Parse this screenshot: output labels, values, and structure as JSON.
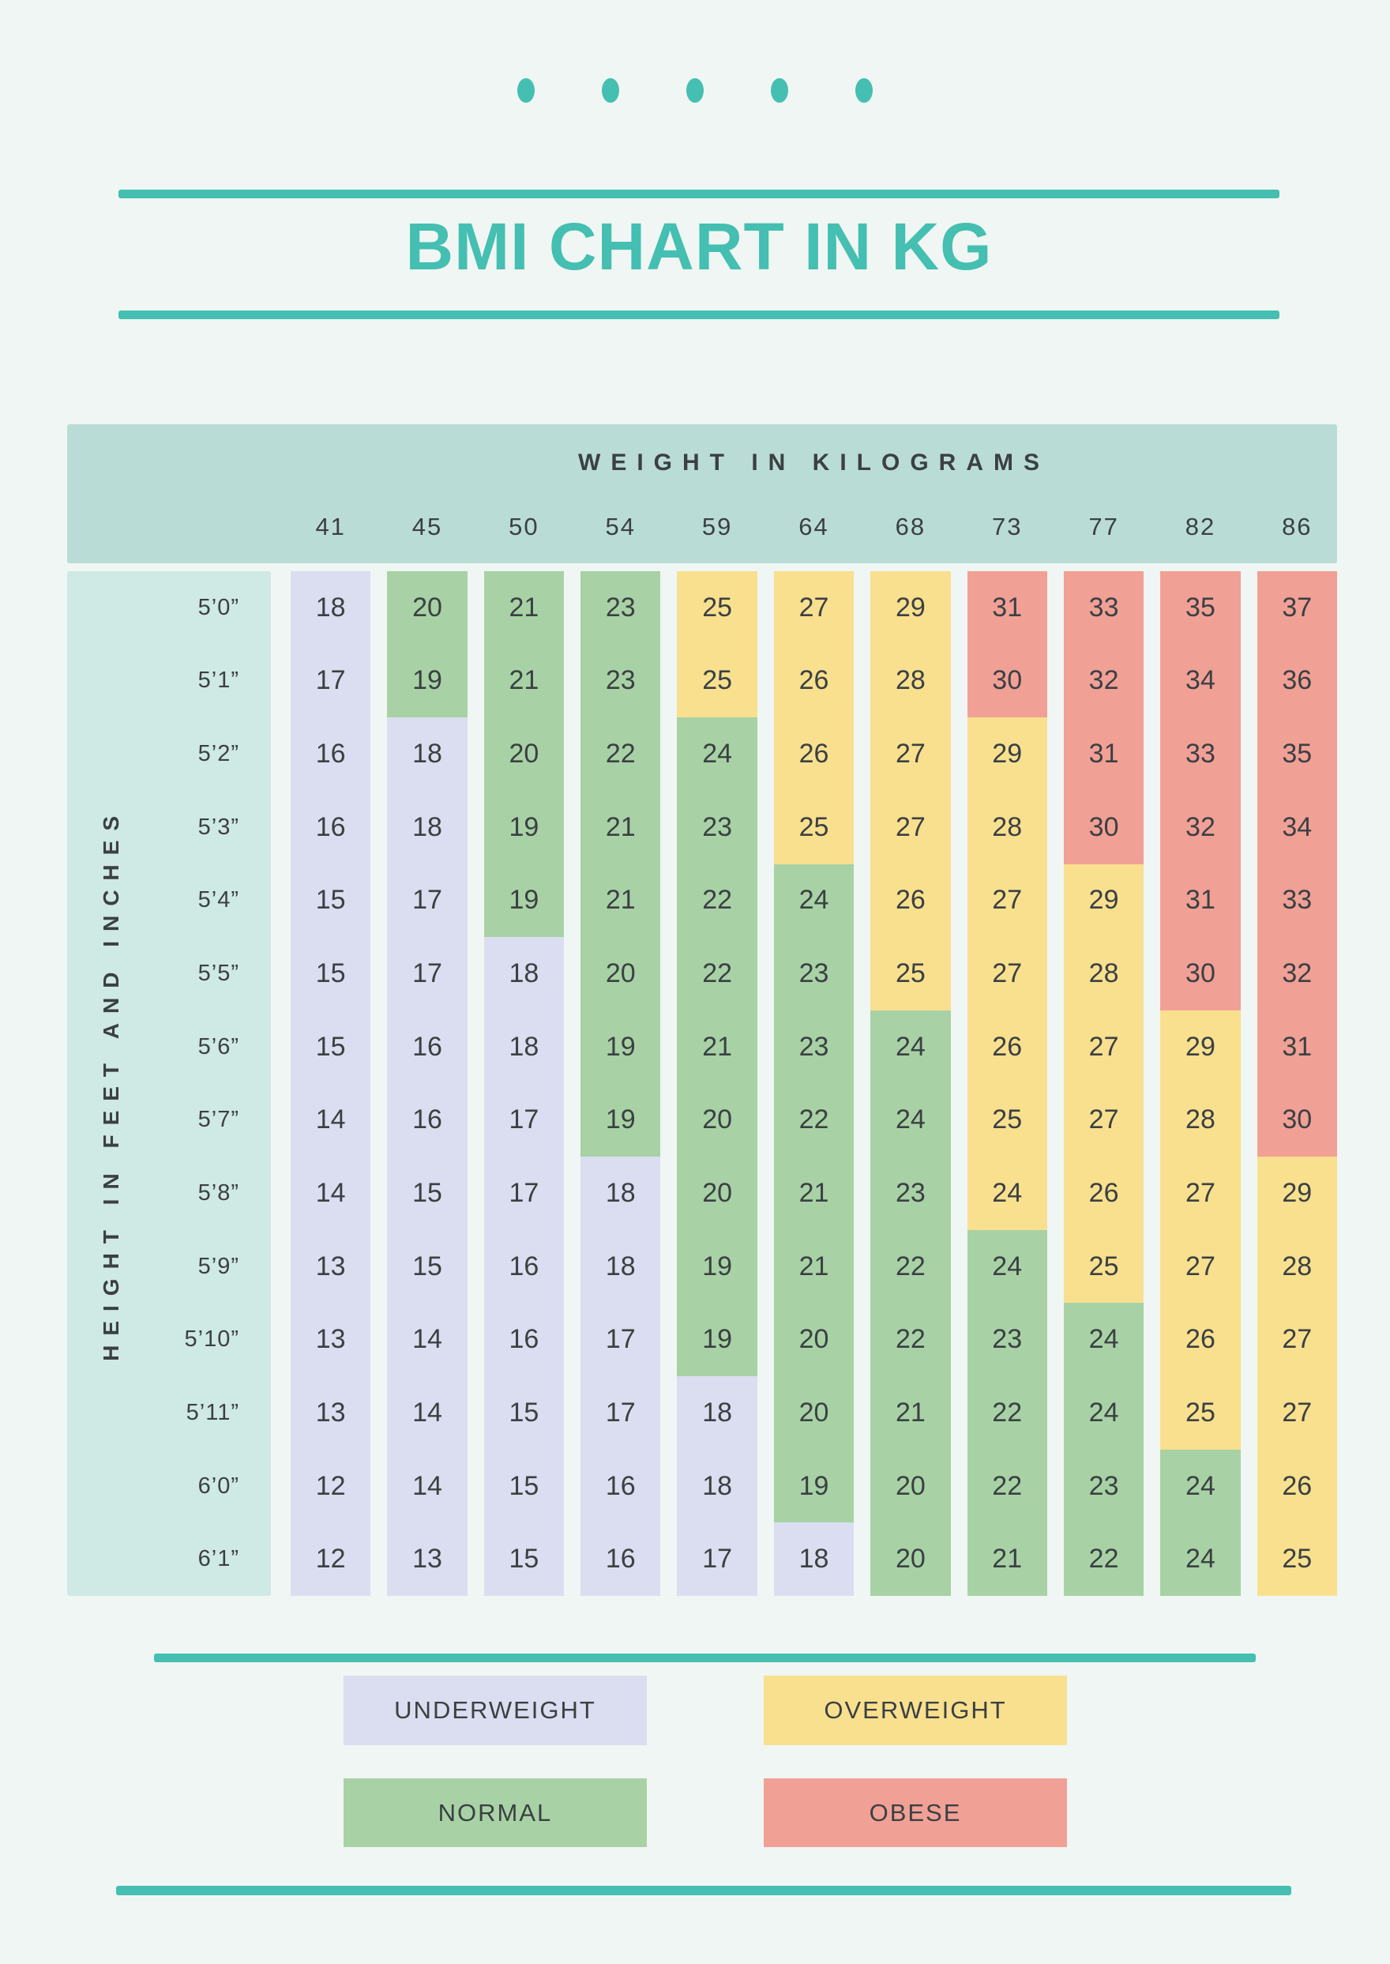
{
  "title": "BMI CHART IN KG",
  "decor": {
    "dot_count": 5
  },
  "table": {
    "weight_axis_label": "WEIGHT IN KILOGRAMS",
    "height_axis_label": "HEIGHT IN FEET AND INCHES",
    "weights": [
      "41",
      "45",
      "50",
      "54",
      "59",
      "64",
      "68",
      "73",
      "77",
      "82",
      "86"
    ],
    "rows": [
      {
        "height": "5’0”",
        "cells": [
          [
            "18",
            "underweight"
          ],
          [
            "20",
            "normal"
          ],
          [
            "21",
            "normal"
          ],
          [
            "23",
            "normal"
          ],
          [
            "25",
            "overweight"
          ],
          [
            "27",
            "overweight"
          ],
          [
            "29",
            "overweight"
          ],
          [
            "31",
            "obese"
          ],
          [
            "33",
            "obese"
          ],
          [
            "35",
            "obese"
          ],
          [
            "37",
            "obese"
          ]
        ]
      },
      {
        "height": "5’1”",
        "cells": [
          [
            "17",
            "underweight"
          ],
          [
            "19",
            "normal"
          ],
          [
            "21",
            "normal"
          ],
          [
            "23",
            "normal"
          ],
          [
            "25",
            "overweight"
          ],
          [
            "26",
            "overweight"
          ],
          [
            "28",
            "overweight"
          ],
          [
            "30",
            "obese"
          ],
          [
            "32",
            "obese"
          ],
          [
            "34",
            "obese"
          ],
          [
            "36",
            "obese"
          ]
        ]
      },
      {
        "height": "5’2”",
        "cells": [
          [
            "16",
            "underweight"
          ],
          [
            "18",
            "underweight"
          ],
          [
            "20",
            "normal"
          ],
          [
            "22",
            "normal"
          ],
          [
            "24",
            "normal"
          ],
          [
            "26",
            "overweight"
          ],
          [
            "27",
            "overweight"
          ],
          [
            "29",
            "overweight"
          ],
          [
            "31",
            "obese"
          ],
          [
            "33",
            "obese"
          ],
          [
            "35",
            "obese"
          ]
        ]
      },
      {
        "height": "5’3”",
        "cells": [
          [
            "16",
            "underweight"
          ],
          [
            "18",
            "underweight"
          ],
          [
            "19",
            "normal"
          ],
          [
            "21",
            "normal"
          ],
          [
            "23",
            "normal"
          ],
          [
            "25",
            "overweight"
          ],
          [
            "27",
            "overweight"
          ],
          [
            "28",
            "overweight"
          ],
          [
            "30",
            "obese"
          ],
          [
            "32",
            "obese"
          ],
          [
            "34",
            "obese"
          ]
        ]
      },
      {
        "height": "5’4”",
        "cells": [
          [
            "15",
            "underweight"
          ],
          [
            "17",
            "underweight"
          ],
          [
            "19",
            "normal"
          ],
          [
            "21",
            "normal"
          ],
          [
            "22",
            "normal"
          ],
          [
            "24",
            "normal"
          ],
          [
            "26",
            "overweight"
          ],
          [
            "27",
            "overweight"
          ],
          [
            "29",
            "overweight"
          ],
          [
            "31",
            "obese"
          ],
          [
            "33",
            "obese"
          ]
        ]
      },
      {
        "height": "5’5”",
        "cells": [
          [
            "15",
            "underweight"
          ],
          [
            "17",
            "underweight"
          ],
          [
            "18",
            "underweight"
          ],
          [
            "20",
            "normal"
          ],
          [
            "22",
            "normal"
          ],
          [
            "23",
            "normal"
          ],
          [
            "25",
            "overweight"
          ],
          [
            "27",
            "overweight"
          ],
          [
            "28",
            "overweight"
          ],
          [
            "30",
            "obese"
          ],
          [
            "32",
            "obese"
          ]
        ]
      },
      {
        "height": "5’6”",
        "cells": [
          [
            "15",
            "underweight"
          ],
          [
            "16",
            "underweight"
          ],
          [
            "18",
            "underweight"
          ],
          [
            "19",
            "normal"
          ],
          [
            "21",
            "normal"
          ],
          [
            "23",
            "normal"
          ],
          [
            "24",
            "normal"
          ],
          [
            "26",
            "overweight"
          ],
          [
            "27",
            "overweight"
          ],
          [
            "29",
            "overweight"
          ],
          [
            "31",
            "obese"
          ]
        ]
      },
      {
        "height": "5’7”",
        "cells": [
          [
            "14",
            "underweight"
          ],
          [
            "16",
            "underweight"
          ],
          [
            "17",
            "underweight"
          ],
          [
            "19",
            "normal"
          ],
          [
            "20",
            "normal"
          ],
          [
            "22",
            "normal"
          ],
          [
            "24",
            "normal"
          ],
          [
            "25",
            "overweight"
          ],
          [
            "27",
            "overweight"
          ],
          [
            "28",
            "overweight"
          ],
          [
            "30",
            "obese"
          ]
        ]
      },
      {
        "height": "5’8”",
        "cells": [
          [
            "14",
            "underweight"
          ],
          [
            "15",
            "underweight"
          ],
          [
            "17",
            "underweight"
          ],
          [
            "18",
            "underweight"
          ],
          [
            "20",
            "normal"
          ],
          [
            "21",
            "normal"
          ],
          [
            "23",
            "normal"
          ],
          [
            "24",
            "overweight"
          ],
          [
            "26",
            "overweight"
          ],
          [
            "27",
            "overweight"
          ],
          [
            "29",
            "overweight"
          ]
        ]
      },
      {
        "height": "5’9”",
        "cells": [
          [
            "13",
            "underweight"
          ],
          [
            "15",
            "underweight"
          ],
          [
            "16",
            "underweight"
          ],
          [
            "18",
            "underweight"
          ],
          [
            "19",
            "normal"
          ],
          [
            "21",
            "normal"
          ],
          [
            "22",
            "normal"
          ],
          [
            "24",
            "normal"
          ],
          [
            "25",
            "overweight"
          ],
          [
            "27",
            "overweight"
          ],
          [
            "28",
            "overweight"
          ]
        ]
      },
      {
        "height": "5’10”",
        "cells": [
          [
            "13",
            "underweight"
          ],
          [
            "14",
            "underweight"
          ],
          [
            "16",
            "underweight"
          ],
          [
            "17",
            "underweight"
          ],
          [
            "19",
            "normal"
          ],
          [
            "20",
            "normal"
          ],
          [
            "22",
            "normal"
          ],
          [
            "23",
            "normal"
          ],
          [
            "24",
            "normal"
          ],
          [
            "26",
            "overweight"
          ],
          [
            "27",
            "overweight"
          ]
        ]
      },
      {
        "height": "5’11”",
        "cells": [
          [
            "13",
            "underweight"
          ],
          [
            "14",
            "underweight"
          ],
          [
            "15",
            "underweight"
          ],
          [
            "17",
            "underweight"
          ],
          [
            "18",
            "underweight"
          ],
          [
            "20",
            "normal"
          ],
          [
            "21",
            "normal"
          ],
          [
            "22",
            "normal"
          ],
          [
            "24",
            "normal"
          ],
          [
            "25",
            "overweight"
          ],
          [
            "27",
            "overweight"
          ]
        ]
      },
      {
        "height": "6’0”",
        "cells": [
          [
            "12",
            "underweight"
          ],
          [
            "14",
            "underweight"
          ],
          [
            "15",
            "underweight"
          ],
          [
            "16",
            "underweight"
          ],
          [
            "18",
            "underweight"
          ],
          [
            "19",
            "normal"
          ],
          [
            "20",
            "normal"
          ],
          [
            "22",
            "normal"
          ],
          [
            "23",
            "normal"
          ],
          [
            "24",
            "normal"
          ],
          [
            "26",
            "overweight"
          ]
        ]
      },
      {
        "height": "6’1”",
        "cells": [
          [
            "12",
            "underweight"
          ],
          [
            "13",
            "underweight"
          ],
          [
            "15",
            "underweight"
          ],
          [
            "16",
            "underweight"
          ],
          [
            "17",
            "underweight"
          ],
          [
            "18",
            "underweight"
          ],
          [
            "20",
            "normal"
          ],
          [
            "21",
            "normal"
          ],
          [
            "22",
            "normal"
          ],
          [
            "24",
            "normal"
          ],
          [
            "25",
            "overweight"
          ]
        ]
      }
    ]
  },
  "legend": [
    {
      "label": "UNDERWEIGHT",
      "category": "underweight"
    },
    {
      "label": "OVERWEIGHT",
      "category": "overweight"
    },
    {
      "label": "NORMAL",
      "category": "normal"
    },
    {
      "label": "OBESE",
      "category": "obese"
    }
  ],
  "colors": {
    "accent": "#44bfb1",
    "page_bg": "#f0f6f3",
    "band": "#badcd6",
    "height_col": "#cfe9e4",
    "ink": "#3b4043",
    "underweight": "#dadef0",
    "normal": "#a8d2a5",
    "overweight": "#f8e08e",
    "obese": "#f1a096"
  },
  "chart_data": {
    "type": "table",
    "title": "BMI CHART IN KG",
    "xlabel": "WEIGHT IN KILOGRAMS",
    "ylabel": "HEIGHT IN FEET AND INCHES",
    "columns_weight_kg": [
      41,
      45,
      50,
      54,
      59,
      64,
      68,
      73,
      77,
      82,
      86
    ],
    "rows_height": [
      "5'0\"",
      "5'1\"",
      "5'2\"",
      "5'3\"",
      "5'4\"",
      "5'5\"",
      "5'6\"",
      "5'7\"",
      "5'8\"",
      "5'9\"",
      "5'10\"",
      "5'11\"",
      "6'0\"",
      "6'1\""
    ],
    "values_bmi": [
      [
        18,
        20,
        21,
        23,
        25,
        27,
        29,
        31,
        33,
        35,
        37
      ],
      [
        17,
        19,
        21,
        23,
        25,
        26,
        28,
        30,
        32,
        34,
        36
      ],
      [
        16,
        18,
        20,
        22,
        24,
        26,
        27,
        29,
        31,
        33,
        35
      ],
      [
        16,
        18,
        19,
        21,
        23,
        25,
        27,
        28,
        30,
        32,
        34
      ],
      [
        15,
        17,
        19,
        21,
        22,
        24,
        26,
        27,
        29,
        31,
        33
      ],
      [
        15,
        17,
        18,
        20,
        22,
        23,
        25,
        27,
        28,
        30,
        32
      ],
      [
        15,
        16,
        18,
        19,
        21,
        23,
        24,
        26,
        27,
        29,
        31
      ],
      [
        14,
        16,
        17,
        19,
        20,
        22,
        24,
        25,
        27,
        28,
        30
      ],
      [
        14,
        15,
        17,
        18,
        20,
        21,
        23,
        24,
        26,
        27,
        29
      ],
      [
        13,
        15,
        16,
        18,
        19,
        21,
        22,
        24,
        25,
        27,
        28
      ],
      [
        13,
        14,
        16,
        17,
        19,
        20,
        22,
        23,
        24,
        26,
        27
      ],
      [
        13,
        14,
        15,
        17,
        18,
        20,
        21,
        22,
        24,
        25,
        27
      ],
      [
        12,
        14,
        15,
        16,
        18,
        19,
        20,
        22,
        23,
        24,
        26
      ],
      [
        12,
        13,
        15,
        16,
        17,
        18,
        20,
        21,
        22,
        24,
        25
      ]
    ],
    "cell_categories": [
      [
        "underweight",
        "normal",
        "normal",
        "normal",
        "overweight",
        "overweight",
        "overweight",
        "obese",
        "obese",
        "obese",
        "obese"
      ],
      [
        "underweight",
        "normal",
        "normal",
        "normal",
        "overweight",
        "overweight",
        "overweight",
        "obese",
        "obese",
        "obese",
        "obese"
      ],
      [
        "underweight",
        "underweight",
        "normal",
        "normal",
        "normal",
        "overweight",
        "overweight",
        "overweight",
        "obese",
        "obese",
        "obese"
      ],
      [
        "underweight",
        "underweight",
        "normal",
        "normal",
        "normal",
        "overweight",
        "overweight",
        "overweight",
        "obese",
        "obese",
        "obese"
      ],
      [
        "underweight",
        "underweight",
        "normal",
        "normal",
        "normal",
        "normal",
        "overweight",
        "overweight",
        "overweight",
        "obese",
        "obese"
      ],
      [
        "underweight",
        "underweight",
        "underweight",
        "normal",
        "normal",
        "normal",
        "overweight",
        "overweight",
        "overweight",
        "obese",
        "obese"
      ],
      [
        "underweight",
        "underweight",
        "underweight",
        "normal",
        "normal",
        "normal",
        "normal",
        "overweight",
        "overweight",
        "overweight",
        "obese"
      ],
      [
        "underweight",
        "underweight",
        "underweight",
        "normal",
        "normal",
        "normal",
        "normal",
        "overweight",
        "overweight",
        "overweight",
        "obese"
      ],
      [
        "underweight",
        "underweight",
        "underweight",
        "underweight",
        "normal",
        "normal",
        "normal",
        "overweight",
        "overweight",
        "overweight",
        "overweight"
      ],
      [
        "underweight",
        "underweight",
        "underweight",
        "underweight",
        "normal",
        "normal",
        "normal",
        "normal",
        "overweight",
        "overweight",
        "overweight"
      ],
      [
        "underweight",
        "underweight",
        "underweight",
        "underweight",
        "normal",
        "normal",
        "normal",
        "normal",
        "normal",
        "overweight",
        "overweight"
      ],
      [
        "underweight",
        "underweight",
        "underweight",
        "underweight",
        "underweight",
        "normal",
        "normal",
        "normal",
        "normal",
        "overweight",
        "overweight"
      ],
      [
        "underweight",
        "underweight",
        "underweight",
        "underweight",
        "underweight",
        "normal",
        "normal",
        "normal",
        "normal",
        "normal",
        "overweight"
      ],
      [
        "underweight",
        "underweight",
        "underweight",
        "underweight",
        "underweight",
        "underweight",
        "normal",
        "normal",
        "normal",
        "normal",
        "overweight"
      ]
    ],
    "legend_entries": [
      "UNDERWEIGHT",
      "NORMAL",
      "OVERWEIGHT",
      "OBESE"
    ],
    "grid": false,
    "legend_position": "bottom"
  }
}
